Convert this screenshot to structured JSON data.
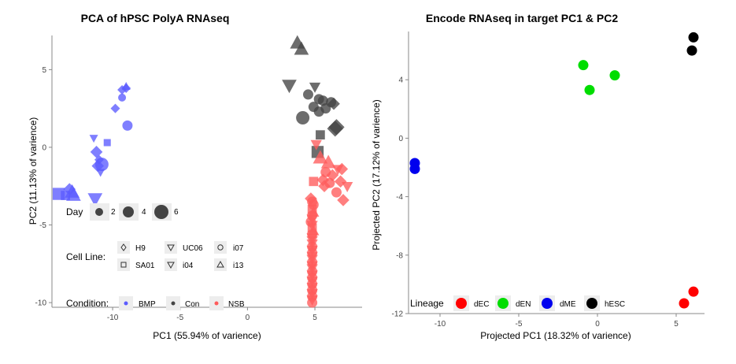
{
  "chart_data": [
    {
      "type": "scatter",
      "title": "PCA of hPSC PolyA RNAseq",
      "xlabel": "PC1 (55.94% of varience)",
      "ylabel": "PC2 (11.13% of varience)",
      "xlim": [
        -14.5,
        8.5
      ],
      "ylim": [
        -10.3,
        7.2
      ],
      "xticks": [
        -10,
        -5,
        0,
        5
      ],
      "yticks": [
        -10,
        -5,
        0,
        5
      ],
      "grid": false,
      "colors": {
        "BMP": "#5b5bff",
        "Con": "#444444",
        "NSB": "#ff5b5b"
      },
      "legend": {
        "day": {
          "title": "Day",
          "labels": [
            "2",
            "4",
            "6"
          ]
        },
        "cell_line": {
          "title": "Cell Line:",
          "labels": [
            "H9",
            "UC06",
            "i07",
            "SA01",
            "i04",
            "i13"
          ]
        },
        "condition": {
          "title": "Condition:",
          "labels": [
            "BMP",
            "Con",
            "NSB"
          ]
        }
      },
      "points": [
        {
          "x": -9.0,
          "y": 3.9,
          "cond": "BMP",
          "shape": "triangle-up",
          "day": 2
        },
        {
          "x": -9.0,
          "y": 3.8,
          "cond": "BMP",
          "shape": "diamond",
          "day": 2
        },
        {
          "x": -9.3,
          "y": 3.7,
          "cond": "BMP",
          "shape": "diamond",
          "day": 2
        },
        {
          "x": -9.3,
          "y": 3.2,
          "cond": "BMP",
          "shape": "circle",
          "day": 2
        },
        {
          "x": -9.8,
          "y": 2.5,
          "cond": "BMP",
          "shape": "diamond",
          "day": 2
        },
        {
          "x": -8.9,
          "y": 1.4,
          "cond": "BMP",
          "shape": "circle",
          "day": 4
        },
        {
          "x": -11.4,
          "y": 0.6,
          "cond": "BMP",
          "shape": "triangle-down",
          "day": 2
        },
        {
          "x": -10.4,
          "y": 0.3,
          "cond": "BMP",
          "shape": "square",
          "day": 2
        },
        {
          "x": -11.2,
          "y": -0.3,
          "cond": "BMP",
          "shape": "diamond",
          "day": 4
        },
        {
          "x": -11.0,
          "y": -0.8,
          "cond": "BMP",
          "shape": "diamond",
          "day": 2
        },
        {
          "x": -10.8,
          "y": -1.1,
          "cond": "BMP",
          "shape": "circle",
          "day": 6
        },
        {
          "x": -11.1,
          "y": -1.2,
          "cond": "BMP",
          "shape": "diamond",
          "day": 4
        },
        {
          "x": -10.9,
          "y": -1.6,
          "cond": "BMP",
          "shape": "triangle-down",
          "day": 2
        },
        {
          "x": -13.2,
          "y": -2.7,
          "cond": "BMP",
          "shape": "diamond",
          "day": 4
        },
        {
          "x": -13.0,
          "y": -2.9,
          "cond": "BMP",
          "shape": "triangle-up",
          "day": 6
        },
        {
          "x": -12.9,
          "y": -3.1,
          "cond": "BMP",
          "shape": "triangle-up",
          "day": 6
        },
        {
          "x": -13.5,
          "y": -3.1,
          "cond": "BMP",
          "shape": "square",
          "day": 4
        },
        {
          "x": -14.0,
          "y": -3.0,
          "cond": "BMP",
          "shape": "square",
          "day": 6
        },
        {
          "x": -11.3,
          "y": -3.3,
          "cond": "BMP",
          "shape": "triangle-down",
          "day": 6
        },
        {
          "x": 3.7,
          "y": 6.7,
          "cond": "Con",
          "shape": "triangle-up",
          "day": 6
        },
        {
          "x": 4.0,
          "y": 6.3,
          "cond": "Con",
          "shape": "triangle-up",
          "day": 6
        },
        {
          "x": 3.1,
          "y": 4.0,
          "cond": "Con",
          "shape": "triangle-down",
          "day": 6
        },
        {
          "x": 5.0,
          "y": 3.9,
          "cond": "Con",
          "shape": "triangle-down",
          "day": 4
        },
        {
          "x": 4.5,
          "y": 3.4,
          "cond": "Con",
          "shape": "circle",
          "day": 4
        },
        {
          "x": 5.3,
          "y": 3.1,
          "cond": "Con",
          "shape": "circle",
          "day": 4
        },
        {
          "x": 5.6,
          "y": 3.0,
          "cond": "Con",
          "shape": "circle",
          "day": 4
        },
        {
          "x": 6.2,
          "y": 2.9,
          "cond": "Con",
          "shape": "circle",
          "day": 4
        },
        {
          "x": 6.4,
          "y": 2.8,
          "cond": "Con",
          "shape": "diamond",
          "day": 4
        },
        {
          "x": 4.9,
          "y": 2.6,
          "cond": "Con",
          "shape": "circle",
          "day": 4
        },
        {
          "x": 5.8,
          "y": 2.5,
          "cond": "Con",
          "shape": "circle",
          "day": 4
        },
        {
          "x": 5.3,
          "y": 2.3,
          "cond": "Con",
          "shape": "circle",
          "day": 4
        },
        {
          "x": 4.1,
          "y": 1.9,
          "cond": "Con",
          "shape": "circle",
          "day": 6
        },
        {
          "x": 6.6,
          "y": 1.3,
          "cond": "Con",
          "shape": "diamond",
          "day": 6
        },
        {
          "x": 6.5,
          "y": 1.2,
          "cond": "Con",
          "shape": "diamond",
          "day": 6
        },
        {
          "x": 5.4,
          "y": 0.8,
          "cond": "Con",
          "shape": "square",
          "day": 4
        },
        {
          "x": 5.2,
          "y": -0.3,
          "cond": "Con",
          "shape": "square",
          "day": 6
        },
        {
          "x": 5.1,
          "y": 0.2,
          "cond": "NSB",
          "shape": "triangle-down",
          "day": 4
        },
        {
          "x": 5.4,
          "y": -0.7,
          "cond": "NSB",
          "shape": "triangle-up",
          "day": 6
        },
        {
          "x": 6.0,
          "y": -1.0,
          "cond": "NSB",
          "shape": "triangle-up",
          "day": 6
        },
        {
          "x": 5.8,
          "y": -1.6,
          "cond": "NSB",
          "shape": "circle",
          "day": 4
        },
        {
          "x": 6.7,
          "y": -1.4,
          "cond": "NSB",
          "shape": "triangle-down",
          "day": 4
        },
        {
          "x": 7.0,
          "y": -1.4,
          "cond": "NSB",
          "shape": "diamond",
          "day": 4
        },
        {
          "x": 6.3,
          "y": -1.8,
          "cond": "NSB",
          "shape": "diamond",
          "day": 4
        },
        {
          "x": 5.6,
          "y": -2.1,
          "cond": "NSB",
          "shape": "diamond",
          "day": 4
        },
        {
          "x": 6.9,
          "y": -2.2,
          "cond": "NSB",
          "shape": "diamond",
          "day": 4
        },
        {
          "x": 4.9,
          "y": -2.2,
          "cond": "NSB",
          "shape": "square",
          "day": 4
        },
        {
          "x": 5.7,
          "y": -2.5,
          "cond": "NSB",
          "shape": "diamond",
          "day": 4
        },
        {
          "x": 6.1,
          "y": -2.3,
          "cond": "NSB",
          "shape": "circle",
          "day": 4
        },
        {
          "x": 7.4,
          "y": -2.5,
          "cond": "NSB",
          "shape": "triangle-down",
          "day": 4
        },
        {
          "x": 6.6,
          "y": -2.9,
          "cond": "NSB",
          "shape": "circle",
          "day": 4
        },
        {
          "x": 4.7,
          "y": -3.3,
          "cond": "NSB",
          "shape": "diamond",
          "day": 4
        },
        {
          "x": 7.1,
          "y": -3.4,
          "cond": "NSB",
          "shape": "diamond",
          "day": 4
        },
        {
          "x": 4.8,
          "y": -3.5,
          "cond": "NSB",
          "shape": "circle",
          "day": 4
        },
        {
          "x": 4.9,
          "y": -3.7,
          "cond": "NSB",
          "shape": "circle",
          "day": 4
        },
        {
          "x": 4.8,
          "y": -4.0,
          "cond": "NSB",
          "shape": "square",
          "day": 4
        },
        {
          "x": 4.9,
          "y": -4.2,
          "cond": "NSB",
          "shape": "triangle-up",
          "day": 4
        },
        {
          "x": 4.8,
          "y": -4.4,
          "cond": "NSB",
          "shape": "circle",
          "day": 4
        },
        {
          "x": 4.8,
          "y": -4.6,
          "cond": "NSB",
          "shape": "triangle-down",
          "day": 4
        },
        {
          "x": 4.7,
          "y": -4.8,
          "cond": "NSB",
          "shape": "circle",
          "day": 4
        },
        {
          "x": 4.8,
          "y": -5.0,
          "cond": "NSB",
          "shape": "triangle-down",
          "day": 4
        },
        {
          "x": 4.8,
          "y": -5.2,
          "cond": "NSB",
          "shape": "square",
          "day": 4
        },
        {
          "x": 4.9,
          "y": -5.4,
          "cond": "NSB",
          "shape": "triangle-up",
          "day": 4
        },
        {
          "x": 4.8,
          "y": -5.6,
          "cond": "NSB",
          "shape": "circle",
          "day": 4
        },
        {
          "x": 4.8,
          "y": -5.8,
          "cond": "NSB",
          "shape": "triangle-down",
          "day": 4
        },
        {
          "x": 4.8,
          "y": -6.0,
          "cond": "NSB",
          "shape": "triangle-down",
          "day": 4
        },
        {
          "x": 4.8,
          "y": -6.2,
          "cond": "NSB",
          "shape": "triangle-down",
          "day": 4
        },
        {
          "x": 4.8,
          "y": -6.4,
          "cond": "NSB",
          "shape": "circle",
          "day": 4
        },
        {
          "x": 4.8,
          "y": -6.6,
          "cond": "NSB",
          "shape": "triangle-down",
          "day": 4
        },
        {
          "x": 4.8,
          "y": -6.8,
          "cond": "NSB",
          "shape": "circle",
          "day": 4
        },
        {
          "x": 4.8,
          "y": -7.0,
          "cond": "NSB",
          "shape": "triangle-down",
          "day": 4
        },
        {
          "x": 4.8,
          "y": -7.2,
          "cond": "NSB",
          "shape": "triangle-down",
          "day": 4
        },
        {
          "x": 4.8,
          "y": -7.4,
          "cond": "NSB",
          "shape": "circle",
          "day": 4
        },
        {
          "x": 4.8,
          "y": -7.6,
          "cond": "NSB",
          "shape": "triangle-down",
          "day": 4
        },
        {
          "x": 4.8,
          "y": -7.8,
          "cond": "NSB",
          "shape": "triangle-down",
          "day": 4
        },
        {
          "x": 4.8,
          "y": -8.0,
          "cond": "NSB",
          "shape": "circle",
          "day": 4
        },
        {
          "x": 4.8,
          "y": -8.2,
          "cond": "NSB",
          "shape": "triangle-down",
          "day": 4
        },
        {
          "x": 4.8,
          "y": -8.4,
          "cond": "NSB",
          "shape": "circle",
          "day": 4
        },
        {
          "x": 4.8,
          "y": -8.6,
          "cond": "NSB",
          "shape": "triangle-down",
          "day": 4
        },
        {
          "x": 4.8,
          "y": -8.8,
          "cond": "NSB",
          "shape": "circle",
          "day": 4
        },
        {
          "x": 4.8,
          "y": -9.0,
          "cond": "NSB",
          "shape": "triangle-down",
          "day": 4
        },
        {
          "x": 4.8,
          "y": -9.2,
          "cond": "NSB",
          "shape": "circle",
          "day": 4
        },
        {
          "x": 4.8,
          "y": -9.4,
          "cond": "NSB",
          "shape": "triangle-down",
          "day": 4
        },
        {
          "x": 4.8,
          "y": -9.6,
          "cond": "NSB",
          "shape": "circle",
          "day": 4
        },
        {
          "x": 4.8,
          "y": -9.8,
          "cond": "NSB",
          "shape": "triangle-down",
          "day": 4
        },
        {
          "x": 4.8,
          "y": -10.0,
          "cond": "NSB",
          "shape": "circle",
          "day": 4
        }
      ]
    },
    {
      "type": "scatter",
      "title": "Encode RNAseq in target PC1 & PC2",
      "xlabel": "Projected PC1 (18.32% of varience)",
      "ylabel": "Projected PC2 (17.12% of varience)",
      "xlim": [
        -12.0,
        6.8
      ],
      "ylim": [
        -12.0,
        7.3
      ],
      "xticks": [
        -10,
        -5,
        0,
        5
      ],
      "yticks": [
        -12,
        -8,
        -4,
        0,
        4
      ],
      "grid": false,
      "colors": {
        "dEC": "#ff0000",
        "dEN": "#00dd00",
        "dME": "#0000ee",
        "hESC": "#000000"
      },
      "legend": {
        "title": "Lineage",
        "labels": [
          "dEC",
          "dEN",
          "dME",
          "hESC"
        ]
      },
      "points": [
        {
          "x": 6.1,
          "y": 6.9,
          "lineage": "hESC"
        },
        {
          "x": 6.0,
          "y": 6.0,
          "lineage": "hESC"
        },
        {
          "x": -0.9,
          "y": 5.0,
          "lineage": "dEN"
        },
        {
          "x": 1.1,
          "y": 4.3,
          "lineage": "dEN"
        },
        {
          "x": -0.5,
          "y": 3.3,
          "lineage": "dEN"
        },
        {
          "x": -11.6,
          "y": -1.7,
          "lineage": "dME"
        },
        {
          "x": -11.6,
          "y": -2.1,
          "lineage": "dME"
        },
        {
          "x": 6.1,
          "y": -10.5,
          "lineage": "dEC"
        },
        {
          "x": 5.5,
          "y": -11.3,
          "lineage": "dEC"
        }
      ]
    }
  ]
}
